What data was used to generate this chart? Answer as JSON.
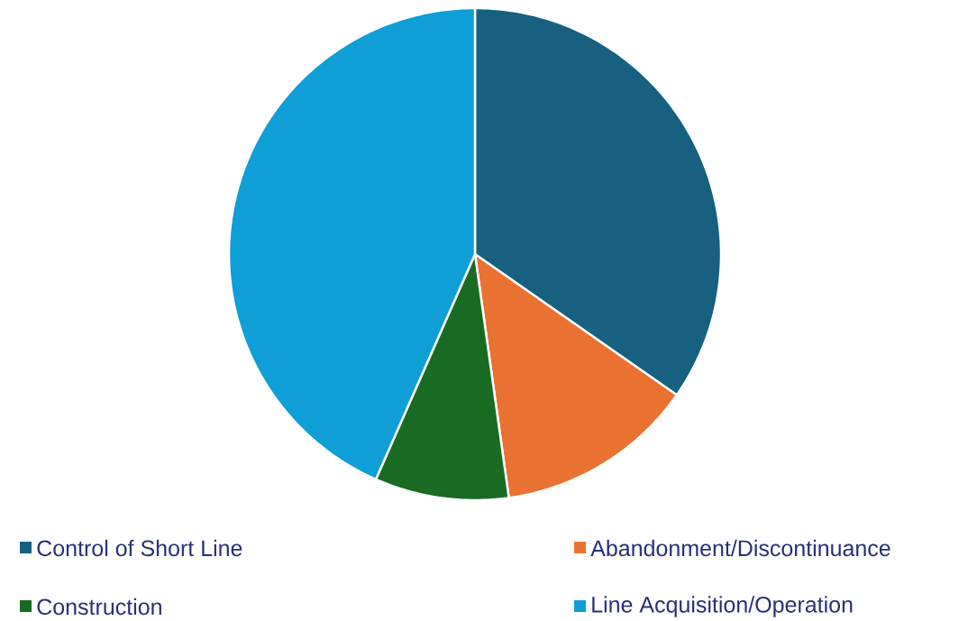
{
  "chart_data": {
    "type": "pie",
    "categories": [
      "Control of Short Line",
      "Abandonment/Discontinuance",
      "Construction",
      "Line Acquisition/Operation"
    ],
    "values": [
      34.7,
      13.1,
      8.8,
      43.4
    ],
    "colors": [
      "#17607f",
      "#e97132",
      "#196b24",
      "#0f9ed5"
    ],
    "legend": "bottom"
  }
}
